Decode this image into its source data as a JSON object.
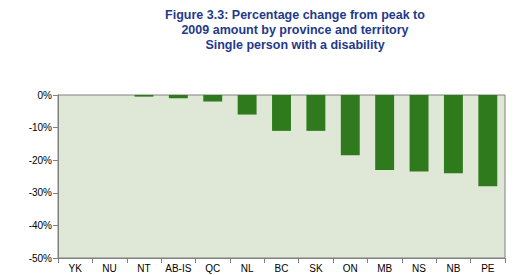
{
  "chart_data": {
    "type": "bar",
    "title": "Figure 3.3: Percentage change from peak to\n2009 amount by province and territory\nSingle person with a disability",
    "categories": [
      "YK",
      "NU",
      "NT",
      "AB-IS",
      "QC",
      "NL",
      "BC",
      "SK",
      "ON",
      "MB",
      "NS",
      "NB",
      "PE"
    ],
    "values": [
      0,
      0,
      -0.5,
      -1,
      -2,
      -6,
      -11,
      -11,
      -18.5,
      -23,
      -23.5,
      -24,
      -28
    ],
    "color": "#2f7a1d",
    "ylim": [
      -50,
      0
    ],
    "yticks": [
      {
        "value": -50,
        "label": "-50%"
      },
      {
        "value": -40,
        "label": "-40%"
      },
      {
        "value": -30,
        "label": "-30%"
      },
      {
        "value": -20,
        "label": "-20%"
      },
      {
        "value": -10,
        "label": "-10%"
      },
      {
        "value": 0,
        "label": "0%"
      }
    ],
    "grid": false
  }
}
